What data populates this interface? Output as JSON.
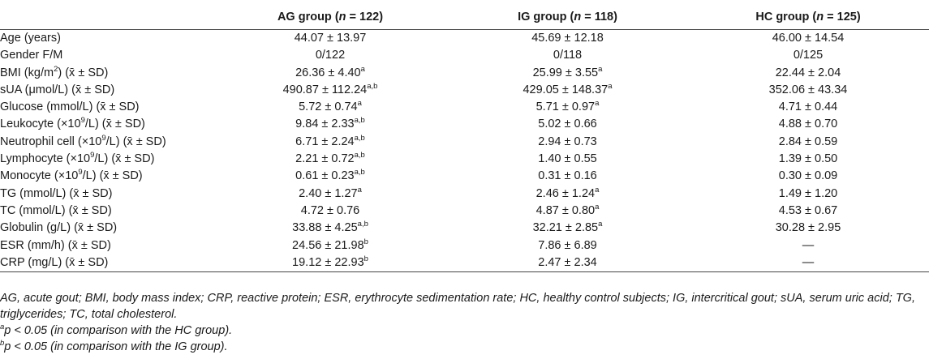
{
  "table": {
    "headers": [
      {
        "prefix": "",
        "n": "",
        "suffix": ""
      },
      {
        "prefix": "AG group (",
        "n": "n",
        "suffix": " = 122)"
      },
      {
        "prefix": "IG group (",
        "n": "n",
        "suffix": " = 118)"
      },
      {
        "prefix": "HC group (",
        "n": "n",
        "suffix": " = 125)"
      }
    ],
    "rows": [
      {
        "label": "Age (years)",
        "unit_sup": "",
        "label_tail": "",
        "stat": "",
        "cells": [
          {
            "v": "44.07 ± 13.97",
            "s": ""
          },
          {
            "v": "45.69 ± 12.18",
            "s": ""
          },
          {
            "v": "46.00 ± 14.54",
            "s": ""
          }
        ]
      },
      {
        "label": "Gender F/M",
        "unit_sup": "",
        "label_tail": "",
        "stat": "",
        "cells": [
          {
            "v": "0/122",
            "s": ""
          },
          {
            "v": "0/118",
            "s": ""
          },
          {
            "v": "0/125",
            "s": ""
          }
        ]
      },
      {
        "label": "BMI (kg/m",
        "unit_sup": "2",
        "label_tail": ")",
        "stat": " (x̄ ± SD)",
        "cells": [
          {
            "v": "26.36 ± 4.40",
            "s": "a"
          },
          {
            "v": "25.99 ± 3.55",
            "s": "a"
          },
          {
            "v": "22.44 ± 2.04",
            "s": ""
          }
        ]
      },
      {
        "label": "sUA (μmol/L)",
        "unit_sup": "",
        "label_tail": "",
        "stat": " (x̄ ± SD)",
        "cells": [
          {
            "v": "490.87 ± 112.24",
            "s": "a,b"
          },
          {
            "v": "429.05 ± 148.37",
            "s": "a"
          },
          {
            "v": "352.06 ± 43.34",
            "s": ""
          }
        ]
      },
      {
        "label": "Glucose (mmol/L)",
        "unit_sup": "",
        "label_tail": "",
        "stat": " (x̄ ± SD)",
        "cells": [
          {
            "v": "5.72 ± 0.74",
            "s": "a"
          },
          {
            "v": "5.71 ± 0.97",
            "s": "a"
          },
          {
            "v": "4.71 ± 0.44",
            "s": ""
          }
        ]
      },
      {
        "label": "Leukocyte (×10",
        "unit_sup": "9",
        "label_tail": "/L)",
        "stat": " (x̄ ± SD)",
        "cells": [
          {
            "v": "9.84 ± 2.33",
            "s": "a,b"
          },
          {
            "v": "5.02 ± 0.66",
            "s": ""
          },
          {
            "v": "4.88 ± 0.70",
            "s": ""
          }
        ]
      },
      {
        "label": "Neutrophil cell (×10",
        "unit_sup": "9",
        "label_tail": "/L)",
        "stat": " (x̄ ± SD)",
        "cells": [
          {
            "v": "6.71 ± 2.24",
            "s": "a,b"
          },
          {
            "v": "2.94 ± 0.73",
            "s": ""
          },
          {
            "v": "2.84 ± 0.59",
            "s": ""
          }
        ]
      },
      {
        "label": "Lymphocyte (×10",
        "unit_sup": "9",
        "label_tail": "/L)",
        "stat": " (x̄ ± SD)",
        "cells": [
          {
            "v": "2.21 ± 0.72",
            "s": "a,b"
          },
          {
            "v": "1.40 ± 0.55",
            "s": ""
          },
          {
            "v": "1.39 ± 0.50",
            "s": ""
          }
        ]
      },
      {
        "label": "Monocyte (×10",
        "unit_sup": "9",
        "label_tail": "/L)",
        "stat": " (x̄ ± SD)",
        "cells": [
          {
            "v": "0.61 ± 0.23",
            "s": "a,b"
          },
          {
            "v": "0.31 ± 0.16",
            "s": ""
          },
          {
            "v": "0.30 ± 0.09",
            "s": ""
          }
        ]
      },
      {
        "label": "TG (mmol/L)",
        "unit_sup": "",
        "label_tail": "",
        "stat": " (x̄ ± SD)",
        "cells": [
          {
            "v": "2.40 ± 1.27",
            "s": "a"
          },
          {
            "v": "2.46 ± 1.24",
            "s": "a"
          },
          {
            "v": "1.49 ± 1.20",
            "s": ""
          }
        ]
      },
      {
        "label": "TC (mmol/L)",
        "unit_sup": "",
        "label_tail": "",
        "stat": " (x̄ ± SD)",
        "cells": [
          {
            "v": "4.72 ± 0.76",
            "s": ""
          },
          {
            "v": "4.87 ± 0.80",
            "s": "a"
          },
          {
            "v": "4.53 ± 0.67",
            "s": ""
          }
        ]
      },
      {
        "label": "Globulin (g/L)",
        "unit_sup": "",
        "label_tail": "",
        "stat": " (x̄ ± SD)",
        "cells": [
          {
            "v": "33.88 ± 4.25",
            "s": "a,b"
          },
          {
            "v": "32.21 ± 2.85",
            "s": "a"
          },
          {
            "v": "30.28 ± 2.95",
            "s": ""
          }
        ]
      },
      {
        "label": "ESR (mm/h)",
        "unit_sup": "",
        "label_tail": "",
        "stat": " (x̄ ± SD)",
        "cells": [
          {
            "v": "24.56 ± 21.98",
            "s": "b"
          },
          {
            "v": "7.86 ± 6.89",
            "s": ""
          },
          {
            "v": "—",
            "s": ""
          }
        ]
      },
      {
        "label": "CRP (mg/L)",
        "unit_sup": "",
        "label_tail": "",
        "stat": " (x̄ ± SD)",
        "cells": [
          {
            "v": "19.12 ± 22.93",
            "s": "b"
          },
          {
            "v": "2.47 ± 2.34",
            "s": ""
          },
          {
            "v": "—",
            "s": ""
          }
        ]
      }
    ]
  },
  "footnotes": {
    "abbreviations": "AG, acute gout; BMI, body mass index; CRP, reactive protein; ESR, erythrocyte sedimentation rate; HC, healthy control subjects; IG, intercritical gout; sUA, serum uric acid; TG, triglycerides; TC, total cholesterol.",
    "a": {
      "mark": "a",
      "text": "p < 0.05 (in comparison with the HC group)."
    },
    "b": {
      "mark": "b",
      "text": "p < 0.05 (in comparison with the IG group)."
    }
  }
}
